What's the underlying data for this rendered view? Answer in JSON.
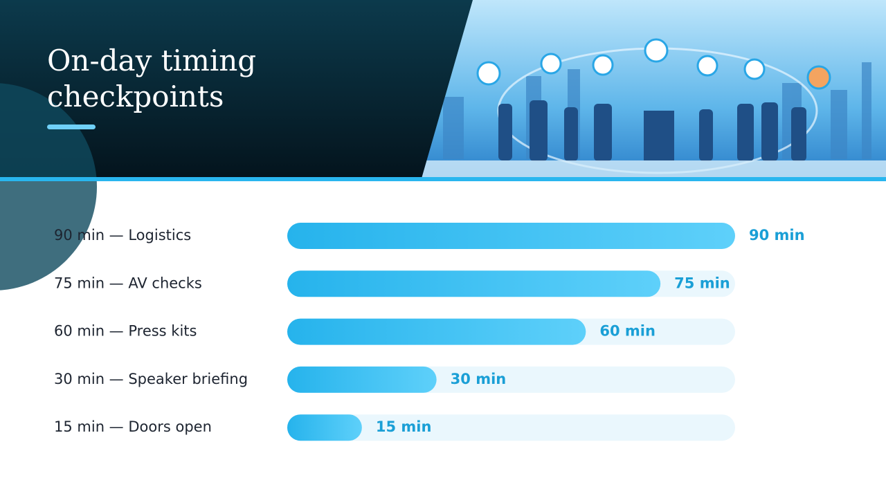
{
  "chart_data": {
    "type": "bar",
    "orientation": "horizontal",
    "title": [
      "On-day timing",
      "checkpoints"
    ],
    "categories": [
      "90 min — Logistics",
      "75 min — AV checks",
      "60 min — Press kits",
      "30 min — Speaker briefing",
      "15 min — Doors open"
    ],
    "values": [
      90,
      75,
      60,
      30,
      15
    ],
    "value_labels": [
      "90 min",
      "75 min",
      "60 min",
      "30 min",
      "15 min"
    ],
    "color": "#29b6ef",
    "xlim": [
      0,
      90
    ]
  }
}
